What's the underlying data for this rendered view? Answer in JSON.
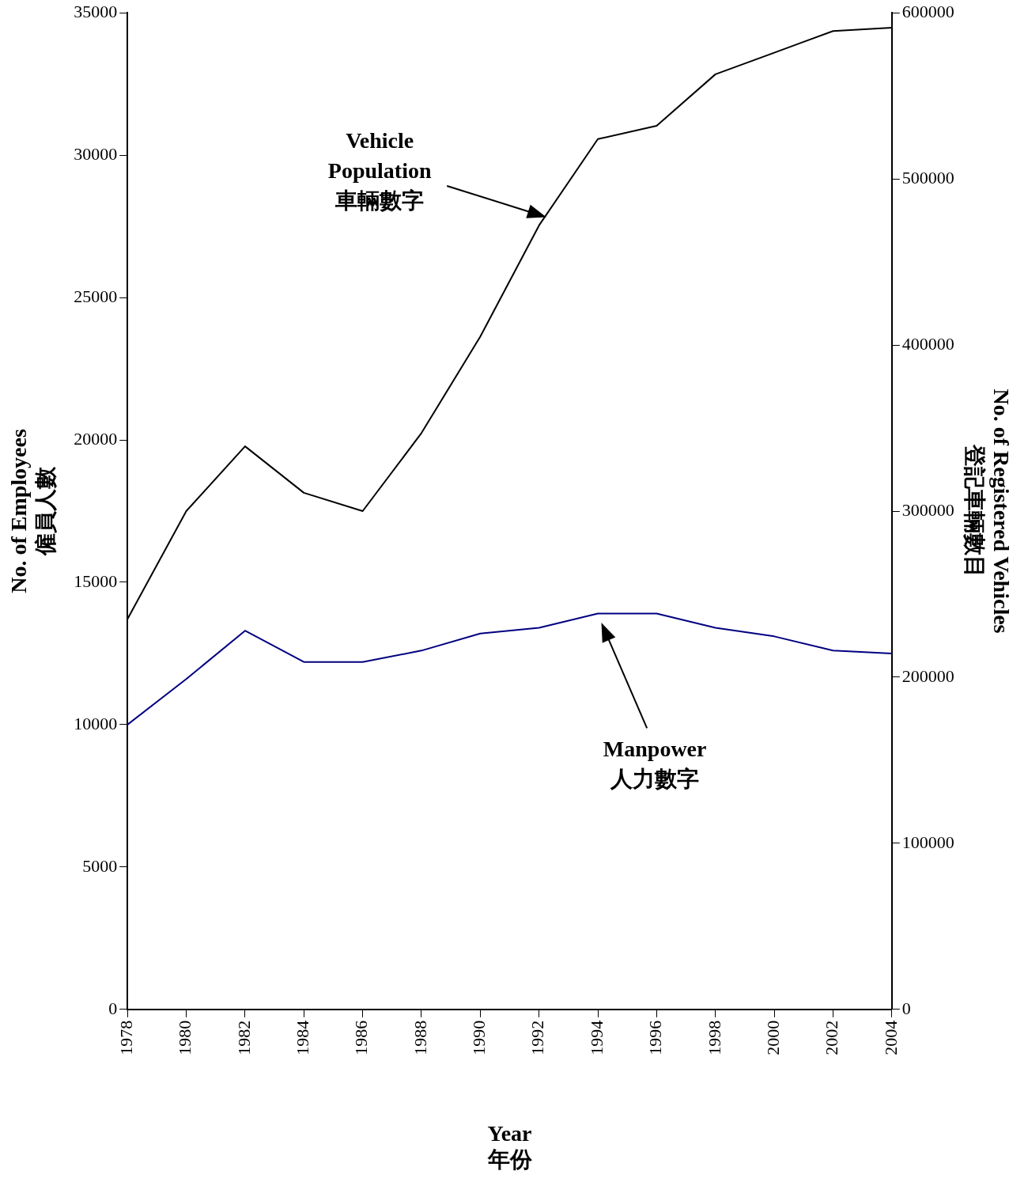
{
  "chart_data": {
    "type": "line",
    "xlabel": "Year\n年份",
    "ylabel": "No. of Employees\n僱員人數",
    "y2label": "No. of Registered Vehicles\n登記車輛數目",
    "x": [
      1978,
      1980,
      1982,
      1984,
      1986,
      1988,
      1990,
      1992,
      1994,
      1996,
      1998,
      2000,
      2002,
      2004
    ],
    "xlim": [
      1978,
      2004
    ],
    "xticks": [
      1978,
      1980,
      1982,
      1984,
      1986,
      1988,
      1990,
      1992,
      1994,
      1996,
      1998,
      2000,
      2002,
      2004
    ],
    "ylim": [
      0,
      35000
    ],
    "yticks": [
      0,
      5000,
      10000,
      15000,
      20000,
      25000,
      30000,
      35000
    ],
    "y2lim": [
      0,
      600000
    ],
    "y2ticks": [
      0,
      100000,
      200000,
      300000,
      400000,
      500000,
      600000
    ],
    "series": [
      {
        "color": "#000000",
        "axis": "y2",
        "values": [
          235000,
          300000,
          339000,
          311000,
          300000,
          347000,
          405000,
          472000,
          524000,
          532000,
          563000,
          576000,
          589000,
          591000
        ]
      },
      {
        "color": "#000080",
        "values": [
          10000,
          11600,
          13300,
          12200,
          12200,
          12600,
          13200,
          13400,
          13900,
          13900,
          13400,
          13100,
          12600,
          12500
        ]
      }
    ],
    "annotations": [
      "Vehicle\nPopulation\n車輛數字",
      "Manpower\n人力數字"
    ],
    "grid": false,
    "legend": false,
    "marker": "none",
    "line_style": "solid"
  }
}
